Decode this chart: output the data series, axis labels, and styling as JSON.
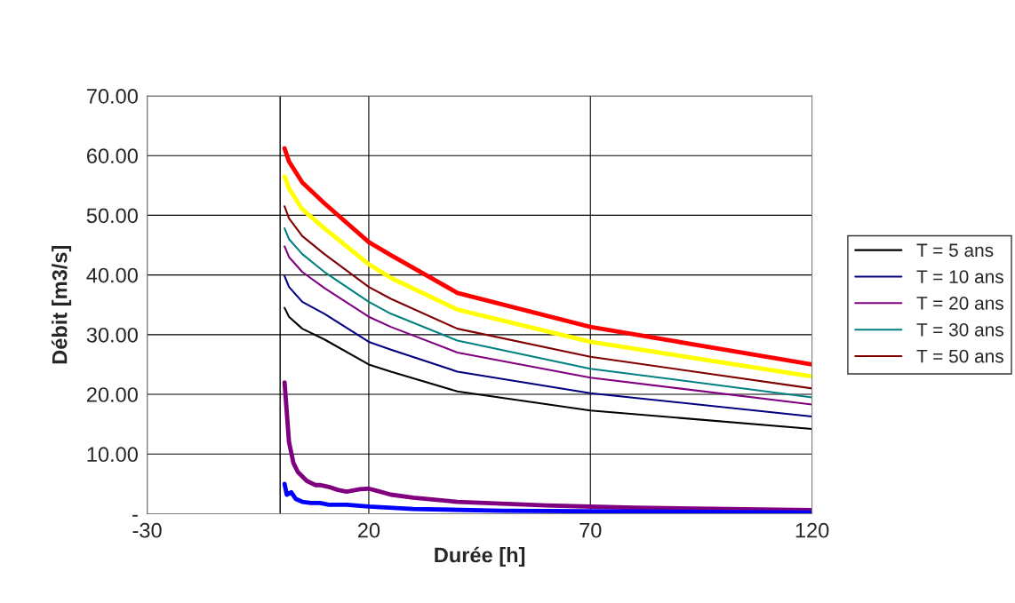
{
  "chart_data": {
    "type": "line",
    "xlabel": "Durée [h]",
    "ylabel": "Débit [m3/s]",
    "xlim": [
      -30,
      120
    ],
    "xticks": [
      -30,
      20,
      70,
      120
    ],
    "ylim": [
      0,
      70
    ],
    "yticks": [
      {
        "value": 0,
        "label": "-"
      },
      {
        "value": 10,
        "label": "10.00"
      },
      {
        "value": 20,
        "label": "20.00"
      },
      {
        "value": 30,
        "label": "30.00"
      },
      {
        "value": 40,
        "label": "40.00"
      },
      {
        "value": 50,
        "label": "50.00"
      },
      {
        "value": 60,
        "label": "60.00"
      },
      {
        "value": 70,
        "label": "70.00"
      }
    ],
    "grid": true,
    "legend": "right",
    "marker": "none",
    "line_style": "solid",
    "ref_lines": [
      {
        "axis": "x",
        "value": 0,
        "color": "#000000"
      }
    ],
    "x": [
      1,
      2,
      5,
      10,
      20,
      25,
      40,
      70,
      120
    ],
    "series": [
      {
        "name": "T = 5 ans",
        "color": "#000000",
        "values": [
          34.5,
          33,
          31,
          29.2,
          25,
          23.8,
          20.5,
          17.3,
          14.2
        ]
      },
      {
        "name": "T = 10 ans",
        "color": "#000080",
        "values": [
          39.8,
          38,
          35.5,
          33.5,
          28.8,
          27.5,
          23.8,
          20.2,
          16.3
        ]
      },
      {
        "name": "T = 20 ans",
        "color": "#800080",
        "values": [
          44.8,
          43,
          40.5,
          37.8,
          33,
          31.3,
          27,
          22.8,
          18.3
        ]
      },
      {
        "name": "T = 30 ans",
        "color": "#008080",
        "values": [
          47.8,
          46,
          43.5,
          40.5,
          35.5,
          33.5,
          29,
          24.3,
          19.5
        ]
      },
      {
        "name": "T = 50 ans",
        "color": "#800000",
        "values": [
          51.5,
          49.5,
          46.5,
          43.5,
          38,
          36,
          31,
          26.3,
          21
        ]
      },
      {
        "color": "#ffff00",
        "values": [
          56.5,
          54.5,
          51,
          47.8,
          41.8,
          39.5,
          34.2,
          28.8,
          23
        ]
      },
      {
        "color": "#ff0000",
        "values": [
          61.2,
          59,
          55.5,
          52,
          45.5,
          43.3,
          37,
          31.3,
          25
        ]
      },
      {
        "color": "#800080",
        "x": [
          1,
          1.5,
          2,
          3,
          4,
          6,
          8,
          9,
          11,
          13,
          15,
          18,
          20,
          22,
          25,
          30,
          40,
          60,
          80,
          120
        ],
        "values": [
          22,
          17,
          12,
          8.5,
          7,
          5.5,
          4.8,
          4.8,
          4.5,
          4.0,
          3.7,
          4.1,
          4.2,
          3.8,
          3.2,
          2.7,
          2.0,
          1.4,
          1.0,
          0.6
        ]
      },
      {
        "color": "#0000ff",
        "x": [
          1,
          1.5,
          2.5,
          3.5,
          5,
          7,
          9,
          11,
          15,
          20,
          30,
          50,
          120
        ],
        "values": [
          5,
          3.2,
          3.6,
          2.5,
          2,
          1.8,
          1.8,
          1.5,
          1.5,
          1.2,
          0.8,
          0.5,
          0.2
        ]
      }
    ]
  }
}
